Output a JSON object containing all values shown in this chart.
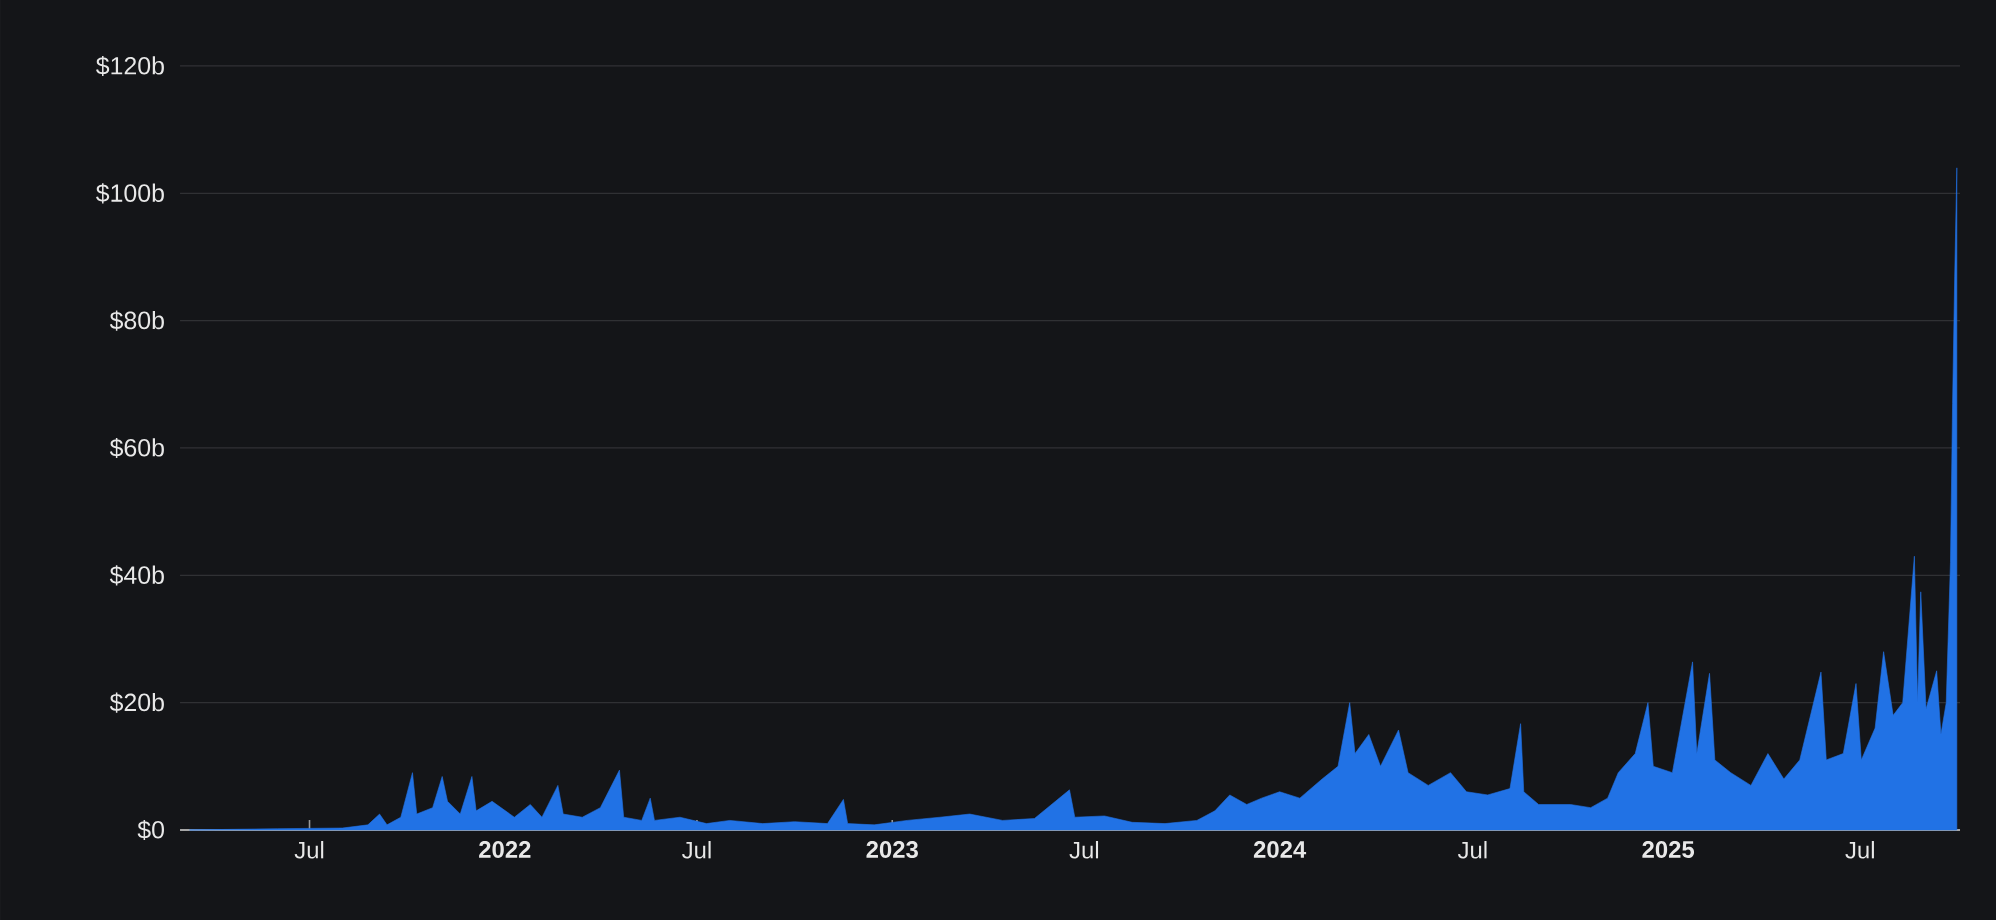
{
  "chart_data": {
    "type": "area",
    "color": "#2172e5",
    "grid": "y",
    "xlim": [
      "2021-03-01",
      "2025-10-03"
    ],
    "ylim": [
      0,
      120
    ],
    "xticks": [
      {
        "value": "2021-07-01",
        "label": "Jul"
      },
      {
        "value": "2022-01-01",
        "label": "2022"
      },
      {
        "value": "2022-07-01",
        "label": "Jul"
      },
      {
        "value": "2023-01-01",
        "label": "2023"
      },
      {
        "value": "2023-07-01",
        "label": "Jul"
      },
      {
        "value": "2024-01-01",
        "label": "2024"
      },
      {
        "value": "2024-07-01",
        "label": "Jul"
      },
      {
        "value": "2025-01-01",
        "label": "2025"
      },
      {
        "value": "2025-07-01",
        "label": "Jul"
      }
    ],
    "yticks": [
      {
        "value": 0,
        "label": "$0"
      },
      {
        "value": 20,
        "label": "$20b"
      },
      {
        "value": 40,
        "label": "$40b"
      },
      {
        "value": 60,
        "label": "$60b"
      },
      {
        "value": 80,
        "label": "$80b"
      },
      {
        "value": 100,
        "label": "$100b"
      },
      {
        "value": 120,
        "label": "$120b"
      }
    ],
    "x": [
      "2021-03-10",
      "2021-06-01",
      "2021-08-01",
      "2021-08-25",
      "2021-09-05",
      "2021-09-12",
      "2021-09-25",
      "2021-10-06",
      "2021-10-10",
      "2021-10-25",
      "2021-11-03",
      "2021-11-08",
      "2021-11-20",
      "2021-12-01",
      "2021-12-05",
      "2021-12-20",
      "2022-01-10",
      "2022-01-25",
      "2022-02-05",
      "2022-02-20",
      "2022-02-25",
      "2022-03-15",
      "2022-04-01",
      "2022-04-19",
      "2022-04-23",
      "2022-05-10",
      "2022-05-18",
      "2022-05-22",
      "2022-06-15",
      "2022-07-10",
      "2022-08-01",
      "2022-09-01",
      "2022-10-01",
      "2022-11-01",
      "2022-11-16",
      "2022-11-20",
      "2022-12-15",
      "2023-01-15",
      "2023-02-15",
      "2023-03-15",
      "2023-04-15",
      "2023-05-15",
      "2023-06-17",
      "2023-06-22",
      "2023-07-20",
      "2023-08-15",
      "2023-09-15",
      "2023-10-15",
      "2023-11-01",
      "2023-11-15",
      "2023-12-01",
      "2023-12-15",
      "2024-01-01",
      "2024-01-20",
      "2024-02-10",
      "2024-02-25",
      "2024-03-07",
      "2024-03-12",
      "2024-03-25",
      "2024-04-05",
      "2024-04-22",
      "2024-05-01",
      "2024-05-20",
      "2024-06-10",
      "2024-06-25",
      "2024-07-15",
      "2024-08-05",
      "2024-08-15",
      "2024-08-18",
      "2024-09-01",
      "2024-10-01",
      "2024-10-20",
      "2024-11-05",
      "2024-11-15",
      "2024-12-01",
      "2024-12-13",
      "2024-12-18",
      "2025-01-05",
      "2025-01-24",
      "2025-01-28",
      "2025-02-09",
      "2025-02-14",
      "2025-03-01",
      "2025-03-20",
      "2025-04-05",
      "2025-04-20",
      "2025-05-05",
      "2025-05-25",
      "2025-05-30",
      "2025-06-15",
      "2025-06-27",
      "2025-07-02",
      "2025-07-15",
      "2025-07-23",
      "2025-08-01",
      "2025-08-10",
      "2025-08-21",
      "2025-08-24",
      "2025-08-27",
      "2025-09-01",
      "2025-09-11",
      "2025-09-15",
      "2025-09-20",
      "2025-09-24",
      "2025-09-26",
      "2025-09-28",
      "2025-09-30"
    ],
    "values": [
      0,
      0.2,
      0.3,
      0.8,
      2.5,
      0.8,
      2.0,
      9.0,
      2.5,
      3.5,
      8.4,
      4.5,
      2.5,
      8.4,
      3.0,
      4.5,
      2.0,
      4.0,
      2.0,
      7.0,
      2.5,
      2.0,
      3.5,
      9.4,
      2.0,
      1.5,
      5.0,
      1.5,
      2.0,
      1.0,
      1.5,
      1.0,
      1.3,
      1.0,
      4.8,
      1.0,
      0.8,
      1.5,
      2.0,
      2.5,
      1.5,
      1.8,
      6.3,
      2.0,
      2.2,
      1.2,
      1.0,
      1.5,
      3.0,
      5.5,
      4.0,
      5.0,
      6.0,
      5.0,
      8.0,
      10.0,
      20.0,
      12.0,
      15.0,
      10.0,
      15.7,
      9.0,
      7.0,
      9.0,
      6.0,
      5.5,
      6.5,
      16.7,
      6.0,
      4.0,
      4.0,
      3.5,
      5.0,
      9.0,
      12.0,
      20.0,
      10.0,
      9.0,
      26.4,
      12.0,
      24.6,
      11.0,
      9.0,
      7.0,
      12.0,
      8.0,
      11.0,
      24.8,
      11.0,
      12.0,
      23.0,
      11.0,
      16.0,
      28.0,
      18.0,
      20.0,
      43.0,
      20.0,
      37.4,
      19.0,
      25.0,
      15.0,
      20.0,
      42.0,
      67.0,
      87.0,
      104.0
    ]
  }
}
